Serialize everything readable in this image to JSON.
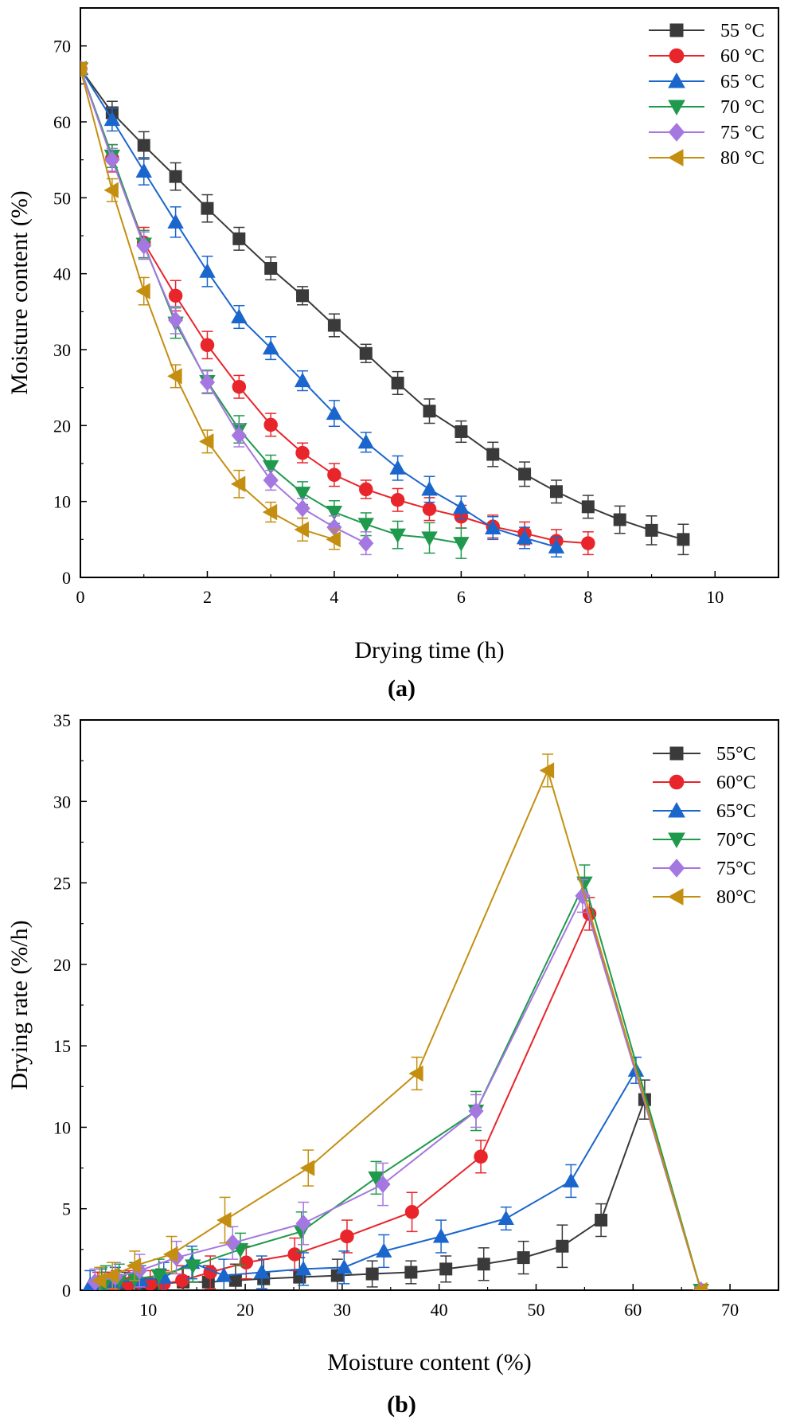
{
  "chart_data": [
    {
      "panel": "(a)",
      "type": "line",
      "xlabel": "Drying time (h)",
      "ylabel": "Moisture content (%)",
      "xlim": [
        0,
        11
      ],
      "ylim": [
        0,
        75
      ],
      "xticks": [
        0,
        2,
        4,
        6,
        8,
        10
      ],
      "yticks": [
        0,
        10,
        20,
        30,
        40,
        50,
        60,
        70
      ],
      "legend_position": "top-right",
      "series": [
        {
          "name": "55 °C",
          "color": "#3a3a3a",
          "marker": "square",
          "x": [
            0,
            0.5,
            1,
            1.5,
            2,
            2.5,
            3,
            3.5,
            4,
            4.5,
            5,
            5.5,
            6,
            6.5,
            7,
            7.5,
            8,
            8.5,
            9,
            9.5
          ],
          "y": [
            67,
            61.2,
            56.9,
            52.8,
            48.6,
            44.6,
            40.7,
            37.1,
            33.2,
            29.5,
            25.6,
            21.9,
            19.2,
            16.2,
            13.6,
            11.3,
            9.3,
            7.6,
            6.2,
            5.0
          ],
          "err": [
            0.8,
            1.5,
            1.8,
            1.8,
            1.8,
            1.5,
            1.5,
            1.2,
            1.5,
            1.2,
            1.5,
            1.6,
            1.4,
            1.6,
            1.6,
            1.5,
            1.5,
            1.8,
            1.9,
            2.0
          ]
        },
        {
          "name": "60 °C",
          "color": "#e8252a",
          "marker": "circle",
          "x": [
            0,
            0.5,
            1,
            1.5,
            2,
            2.5,
            3,
            3.5,
            4,
            4.5,
            5,
            5.5,
            6,
            6.5,
            7,
            7.5,
            8
          ],
          "y": [
            67,
            55.2,
            44.1,
            37.1,
            30.6,
            25.1,
            20.1,
            16.4,
            13.5,
            11.6,
            10.2,
            9.0,
            8.0,
            6.7,
            5.8,
            4.8,
            4.5
          ],
          "err": [
            0.8,
            1.8,
            2.0,
            2.0,
            1.8,
            1.5,
            1.5,
            1.3,
            1.5,
            1.2,
            1.5,
            1.5,
            1.5,
            1.5,
            1.5,
            1.5,
            1.5
          ]
        },
        {
          "name": "65 °C",
          "color": "#1a66cc",
          "marker": "triangle-up",
          "x": [
            0,
            0.5,
            1,
            1.5,
            2,
            2.5,
            3,
            3.5,
            4,
            4.5,
            5,
            5.5,
            6,
            6.5,
            7,
            7.5
          ],
          "y": [
            67,
            60.3,
            53.5,
            46.8,
            40.3,
            34.3,
            30.2,
            25.9,
            21.6,
            17.8,
            14.4,
            11.6,
            9.2,
            6.5,
            5.2,
            4.0
          ],
          "err": [
            0.8,
            1.5,
            1.8,
            2.0,
            2.0,
            1.5,
            1.5,
            1.3,
            1.7,
            1.3,
            1.6,
            1.7,
            1.5,
            1.5,
            1.4,
            1.3
          ]
        },
        {
          "name": "70 °C",
          "color": "#1f9a4d",
          "marker": "triangle-down",
          "x": [
            0,
            0.5,
            1,
            1.5,
            2,
            2.5,
            3,
            3.5,
            4,
            4.5,
            5,
            5.5,
            6
          ],
          "y": [
            67,
            55.5,
            43.9,
            33.5,
            25.8,
            19.5,
            14.6,
            11.1,
            8.6,
            7.0,
            5.6,
            5.2,
            4.5
          ],
          "err": [
            0.8,
            1.5,
            1.8,
            2.0,
            1.5,
            1.8,
            1.5,
            1.5,
            1.5,
            1.5,
            1.8,
            2.0,
            2.0
          ]
        },
        {
          "name": "75 °C",
          "color": "#a577e0",
          "marker": "diamond",
          "x": [
            0,
            0.5,
            1,
            1.5,
            2,
            2.5,
            3,
            3.5,
            4,
            4.5
          ],
          "y": [
            67,
            55.0,
            43.7,
            33.9,
            25.7,
            18.7,
            12.8,
            9.1,
            6.6,
            4.5
          ],
          "err": [
            0.8,
            1.5,
            1.8,
            1.8,
            1.5,
            1.5,
            1.3,
            1.3,
            1.5,
            1.5
          ]
        },
        {
          "name": "80 °C",
          "color": "#c48f10",
          "marker": "triangle-left",
          "x": [
            0,
            0.5,
            1,
            1.5,
            2,
            2.5,
            3,
            3.5,
            4
          ],
          "y": [
            67,
            51.0,
            37.7,
            26.5,
            17.9,
            12.3,
            8.6,
            6.3,
            5.0
          ],
          "err": [
            0.8,
            1.5,
            1.8,
            1.5,
            1.5,
            1.8,
            1.3,
            1.5,
            1.3
          ]
        }
      ]
    },
    {
      "panel": "(b)",
      "type": "line",
      "xlabel": "Moisture content (%)",
      "ylabel": "Drying rate (%/h)",
      "xlim": [
        3,
        75
      ],
      "ylim": [
        0,
        35
      ],
      "xticks": [
        10,
        20,
        30,
        40,
        50,
        60,
        70
      ],
      "yticks": [
        0,
        5,
        10,
        15,
        20,
        25,
        30,
        35
      ],
      "legend_position": "top-right",
      "series": [
        {
          "name": "55°C",
          "color": "#3a3a3a",
          "marker": "square",
          "x": [
            67,
            61.2,
            56.7,
            52.7,
            48.7,
            44.6,
            40.7,
            37.1,
            33.1,
            29.5,
            25.6,
            21.9,
            19.0,
            16.2,
            13.6,
            11.3,
            9.2,
            7.6,
            6.1,
            5.0
          ],
          "y": [
            0,
            11.7,
            4.3,
            2.7,
            2.0,
            1.6,
            1.3,
            1.1,
            1.0,
            0.9,
            0.8,
            0.7,
            0.6,
            0.5,
            0.5,
            0.4,
            0.4,
            0.3,
            0.3,
            0.3
          ],
          "err": [
            0.2,
            1.2,
            1.0,
            1.3,
            1.0,
            1.0,
            0.8,
            0.7,
            0.8,
            1.0,
            1.2,
            1.2,
            1.0,
            1.0,
            1.0,
            0.9,
            0.8,
            0.8,
            0.8,
            0.8
          ]
        },
        {
          "name": "60°C",
          "color": "#e8252a",
          "marker": "circle",
          "x": [
            67,
            55.5,
            44.3,
            37.2,
            30.5,
            25.1,
            20.1,
            16.4,
            13.5,
            11.6,
            10.2,
            9.0,
            8.0,
            6.7,
            5.8,
            4.8
          ],
          "y": [
            0,
            23.1,
            8.2,
            4.8,
            3.3,
            2.2,
            1.7,
            1.1,
            0.6,
            0.4,
            0.4,
            0.5,
            0.4,
            0.4,
            0.3,
            0.3
          ],
          "err": [
            0.2,
            1.0,
            1.0,
            1.2,
            1.0,
            1.0,
            1.0,
            1.0,
            0.9,
            0.8,
            0.8,
            0.9,
            0.8,
            0.8,
            0.8,
            0.8
          ]
        },
        {
          "name": "65°C",
          "color": "#1a66cc",
          "marker": "triangle-up",
          "x": [
            67,
            60.3,
            53.6,
            46.9,
            40.2,
            34.3,
            30.2,
            26.0,
            21.7,
            17.8,
            14.5,
            11.6,
            9.2,
            6.6,
            5.2,
            4.0
          ],
          "y": [
            0,
            13.5,
            6.7,
            4.4,
            3.3,
            2.4,
            1.4,
            1.3,
            1.1,
            0.9,
            1.7,
            0.8,
            0.6,
            0.5,
            0.4,
            0.3
          ],
          "err": [
            0.2,
            0.8,
            1.0,
            0.7,
            1.0,
            1.0,
            1.0,
            1.0,
            1.0,
            1.0,
            1.0,
            0.9,
            0.9,
            0.9,
            0.9,
            0.9
          ]
        },
        {
          "name": "70°C",
          "color": "#1f9a4d",
          "marker": "triangle-down",
          "x": [
            67,
            55.0,
            43.8,
            33.5,
            25.8,
            19.5,
            14.6,
            11.1,
            8.6,
            7.0,
            5.6,
            5.2
          ],
          "y": [
            0,
            25.0,
            11.0,
            6.9,
            3.6,
            2.5,
            1.5,
            0.9,
            0.7,
            0.6,
            0.5,
            0.4
          ],
          "err": [
            0.2,
            1.1,
            1.2,
            1.0,
            1.2,
            1.0,
            1.0,
            1.0,
            1.0,
            1.0,
            1.0,
            1.0
          ]
        },
        {
          "name": "75°C",
          "color": "#a577e0",
          "marker": "diamond",
          "x": [
            67,
            54.8,
            43.8,
            34.2,
            26.0,
            18.7,
            12.9,
            9.1,
            6.6,
            4.5
          ],
          "y": [
            0,
            24.2,
            11.0,
            6.5,
            4.1,
            2.9,
            2.0,
            1.2,
            0.8,
            0.5
          ],
          "err": [
            0.2,
            1.0,
            1.0,
            1.3,
            1.3,
            1.0,
            1.0,
            1.0,
            0.9,
            0.8
          ]
        },
        {
          "name": "80°C",
          "color": "#c48f10",
          "marker": "triangle-left",
          "x": [
            67,
            51.2,
            37.7,
            26.5,
            17.9,
            12.4,
            8.6,
            6.3,
            5.0
          ],
          "y": [
            0,
            31.9,
            13.3,
            7.5,
            4.3,
            2.2,
            1.5,
            0.9,
            0.6
          ],
          "err": [
            0.2,
            1.0,
            1.0,
            1.1,
            1.4,
            1.1,
            0.9,
            0.8,
            0.8
          ]
        }
      ]
    }
  ]
}
